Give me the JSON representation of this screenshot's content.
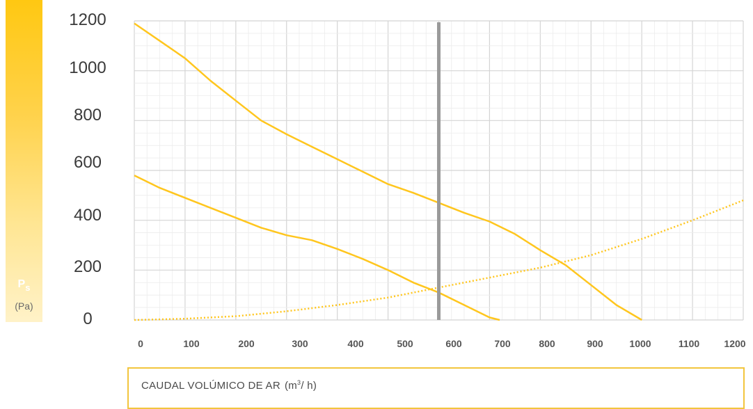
{
  "chart_data": {
    "type": "line",
    "y_axis_symbol": "P",
    "y_axis_symbol_sub": "s",
    "y_axis_unit": "(Pa)",
    "xlabel": "CAUDAL VOLÚMICO DE AR",
    "xlabel_unit_base": "(m",
    "xlabel_unit_sup": "3",
    "xlabel_unit_tail": "/ h)",
    "xlim": [
      0,
      1200
    ],
    "ylim": [
      0,
      1200
    ],
    "x_ticks": [
      "0",
      "100",
      "200",
      "300",
      "400",
      "500",
      "600",
      "700",
      "800",
      "900",
      "1000",
      "1100",
      "1200"
    ],
    "y_ticks": [
      "1200",
      "1000",
      "800",
      "600",
      "400",
      "200",
      "0"
    ],
    "grid": true,
    "operating_point_x": 600,
    "series": [
      {
        "style": "solid",
        "color": "#ffc61e",
        "x": [
          0,
          50,
          100,
          150,
          200,
          250,
          300,
          350,
          400,
          450,
          500,
          550,
          600,
          650,
          700,
          750,
          800,
          850,
          900,
          950,
          1000
        ],
        "y": [
          1190,
          1120,
          1050,
          960,
          880,
          800,
          745,
          695,
          645,
          595,
          545,
          510,
          470,
          430,
          395,
          345,
          280,
          220,
          140,
          60,
          0
        ]
      },
      {
        "style": "solid",
        "color": "#ffc61e",
        "x": [
          0,
          50,
          100,
          150,
          200,
          250,
          300,
          350,
          400,
          450,
          500,
          550,
          600,
          650,
          700,
          720
        ],
        "y": [
          580,
          530,
          490,
          450,
          410,
          370,
          340,
          320,
          285,
          245,
          200,
          150,
          110,
          60,
          10,
          0
        ]
      },
      {
        "style": "dotted",
        "color": "#ffc61e",
        "x": [
          0,
          100,
          200,
          300,
          400,
          500,
          600,
          700,
          800,
          900,
          1000,
          1100,
          1200
        ],
        "y": [
          0,
          5,
          15,
          35,
          60,
          90,
          130,
          170,
          210,
          260,
          325,
          400,
          480
        ]
      }
    ]
  }
}
